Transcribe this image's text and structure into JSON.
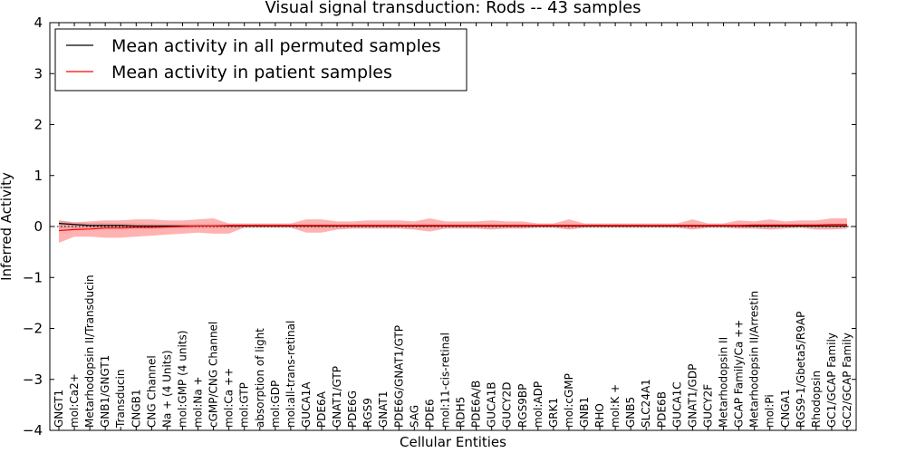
{
  "chart_data": {
    "type": "line",
    "title": "Visual signal transduction: Rods -- 43 samples",
    "xlabel": "Cellular Entities",
    "ylabel": "Inferred Activity",
    "ylim": [
      -4,
      4
    ],
    "yticks": [
      -4,
      -3,
      -2,
      -1,
      0,
      1,
      2,
      3,
      4
    ],
    "ytick_labels": [
      "−4",
      "−3",
      "−2",
      "−1",
      "0",
      "1",
      "2",
      "3",
      "4"
    ],
    "categories": [
      "GNGT1",
      "mol:Ca2+",
      "Metarhodopsin II/Transducin",
      "GNB1/GNGT1",
      "Transducin",
      "CNGB1",
      "CNG Channel",
      "Na + (4 Units)",
      "mol:GMP (4 units)",
      "mol:Na +",
      "cGMP/CNG Channel",
      "mol:Ca ++",
      "mol:GTP",
      "absorption of light",
      "mol:GDP",
      "mol:all-trans-retinal",
      "GUCA1A",
      "PDE6A",
      "GNAT1/GTP",
      "PDE6G",
      "RGS9",
      "GNAT1",
      "PDE6G/GNAT1/GTP",
      "SAG",
      "PDE6",
      "mol:11-cis-retinal",
      "RDH5",
      "PDE6A/B",
      "GUCA1B",
      "GUCY2D",
      "RGS9BP",
      "mol:ADP",
      "GRK1",
      "mol:cGMP",
      "GNB1",
      "RHO",
      "mol:K +",
      "GNB5",
      "SLC24A1",
      "PDE6B",
      "GUCA1C",
      "GNAT1/GDP",
      "GUCY2F",
      "Metarhodopsin II",
      "GCAP Family/Ca ++",
      "Metarhodopsin II/Arrestin",
      "mol:Pi",
      "CNGA1",
      "RGS9-1/Gbeta5/R9AP",
      "Rhodopsin",
      "GC1/GCAP Family",
      "GC2/GCAP Family"
    ],
    "legend": {
      "location": "top-left",
      "entries": [
        "Mean activity in all permuted samples",
        "Mean activity in patient samples"
      ]
    },
    "series": [
      {
        "name": "Mean activity in all permuted samples",
        "color": "#000000",
        "values": [
          0.06,
          0.04,
          0.02,
          0.02,
          0.02,
          0.01,
          0.01,
          0.01,
          0.01,
          0.01,
          0.01,
          0.01,
          0.01,
          0.01,
          0.01,
          0.01,
          0.01,
          0.01,
          0.01,
          0.01,
          0.01,
          0.01,
          0.01,
          0.01,
          0.01,
          0.01,
          0.01,
          0.01,
          0.01,
          0.01,
          0.01,
          0.01,
          0.01,
          0.01,
          0.01,
          0.01,
          0.01,
          0.01,
          0.01,
          0.01,
          0.01,
          0.01,
          0.01,
          0.01,
          0.01,
          0.01,
          0.01,
          0.01,
          0.01,
          0.01,
          0.01,
          0.01
        ],
        "band_low": [
          -0.04,
          -0.04,
          -0.04,
          -0.04,
          -0.04,
          -0.04,
          -0.04,
          -0.04,
          -0.04,
          -0.04,
          -0.04,
          -0.04,
          -0.04,
          -0.04,
          -0.04,
          -0.04,
          -0.04,
          -0.04,
          -0.04,
          -0.04,
          -0.04,
          -0.04,
          -0.04,
          -0.04,
          -0.04,
          -0.04,
          -0.04,
          -0.04,
          -0.04,
          -0.04,
          -0.04,
          -0.04,
          -0.04,
          -0.04,
          -0.04,
          -0.04,
          -0.04,
          -0.04,
          -0.04,
          -0.04,
          -0.04,
          -0.04,
          -0.04,
          -0.04,
          -0.04,
          -0.04,
          -0.04,
          -0.04,
          -0.04,
          -0.04,
          -0.04,
          -0.04
        ],
        "band_high": [
          0.12,
          0.09,
          0.07,
          0.07,
          0.06,
          0.06,
          0.05,
          0.05,
          0.05,
          0.05,
          0.05,
          0.05,
          0.05,
          0.05,
          0.05,
          0.05,
          0.05,
          0.05,
          0.05,
          0.05,
          0.05,
          0.05,
          0.05,
          0.05,
          0.05,
          0.05,
          0.05,
          0.05,
          0.05,
          0.05,
          0.05,
          0.05,
          0.05,
          0.05,
          0.05,
          0.05,
          0.05,
          0.05,
          0.05,
          0.05,
          0.05,
          0.05,
          0.05,
          0.05,
          0.05,
          0.05,
          0.05,
          0.05,
          0.05,
          0.05,
          0.05,
          0.05
        ]
      },
      {
        "name": "Mean activity in patient samples",
        "color": "#ff0000",
        "values": [
          -0.08,
          -0.06,
          -0.05,
          -0.03,
          -0.03,
          -0.02,
          -0.02,
          -0.01,
          0.0,
          0.01,
          0.01,
          0.02,
          0.02,
          0.02,
          0.02,
          0.02,
          0.02,
          0.02,
          0.02,
          0.02,
          0.02,
          0.02,
          0.02,
          0.02,
          0.02,
          0.02,
          0.02,
          0.02,
          0.02,
          0.02,
          0.02,
          0.02,
          0.02,
          0.02,
          0.02,
          0.02,
          0.02,
          0.02,
          0.02,
          0.02,
          0.02,
          0.02,
          0.02,
          0.02,
          0.02,
          0.03,
          0.03,
          0.03,
          0.03,
          0.03,
          0.04,
          0.04
        ],
        "band_low": [
          -0.32,
          -0.2,
          -0.2,
          -0.22,
          -0.22,
          -0.2,
          -0.18,
          -0.16,
          -0.14,
          -0.12,
          -0.14,
          -0.14,
          -0.02,
          -0.02,
          -0.02,
          -0.02,
          -0.12,
          -0.12,
          -0.06,
          -0.04,
          -0.04,
          -0.04,
          -0.04,
          -0.06,
          -0.1,
          -0.04,
          -0.04,
          -0.04,
          -0.06,
          -0.04,
          -0.04,
          -0.02,
          -0.02,
          -0.06,
          -0.02,
          -0.02,
          -0.02,
          -0.02,
          -0.02,
          -0.02,
          -0.02,
          -0.06,
          -0.02,
          -0.02,
          -0.04,
          -0.04,
          -0.06,
          -0.04,
          -0.02,
          -0.06,
          -0.06,
          -0.04
        ],
        "band_high": [
          0.12,
          0.08,
          0.1,
          0.12,
          0.12,
          0.14,
          0.14,
          0.12,
          0.12,
          0.14,
          0.16,
          0.06,
          0.06,
          0.06,
          0.06,
          0.06,
          0.14,
          0.14,
          0.1,
          0.1,
          0.12,
          0.12,
          0.12,
          0.1,
          0.16,
          0.1,
          0.1,
          0.1,
          0.12,
          0.1,
          0.1,
          0.06,
          0.06,
          0.14,
          0.06,
          0.06,
          0.06,
          0.06,
          0.06,
          0.06,
          0.06,
          0.14,
          0.06,
          0.06,
          0.12,
          0.1,
          0.14,
          0.1,
          0.12,
          0.12,
          0.16,
          0.16
        ]
      }
    ],
    "zero_line": "dotted"
  }
}
